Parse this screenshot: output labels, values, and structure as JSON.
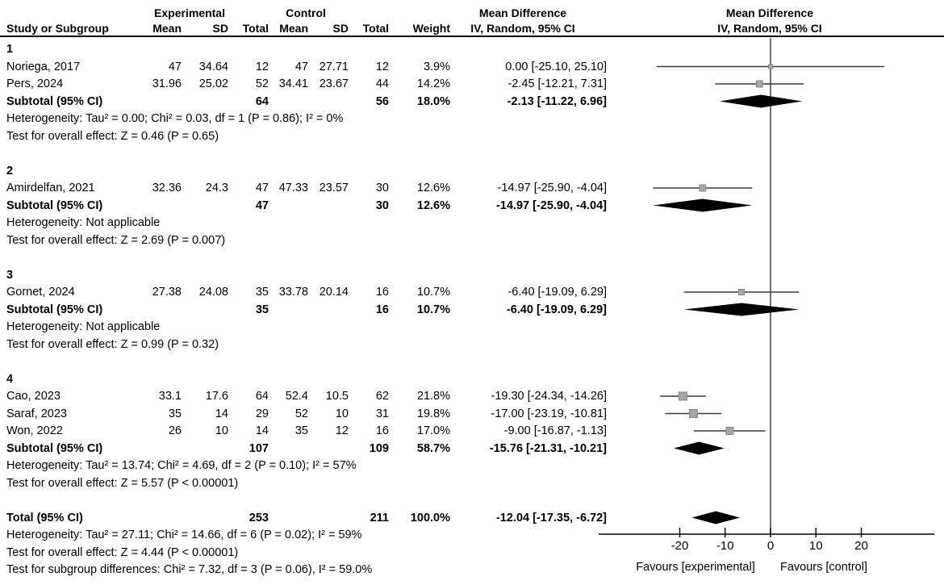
{
  "header": {
    "group_experimental": "Experimental",
    "group_control": "Control",
    "study_col": "Study or Subgroup",
    "cols": {
      "mean1": "Mean",
      "sd1": "SD",
      "total1": "Total",
      "mean2": "Mean",
      "sd2": "SD",
      "total2": "Total",
      "weight": "Weight"
    },
    "effect_label": "Mean Difference",
    "effect_sub": "IV, Random, 95% CI",
    "plot_label": "Mean Difference",
    "plot_sub": "IV, Random, 95% CI"
  },
  "axis": {
    "ticks": [
      -20,
      -10,
      0,
      10,
      20
    ],
    "tick_labels": [
      "-20",
      "-10",
      "0",
      "10",
      "20"
    ],
    "favours_left": "Favours [experimental]",
    "favours_right": "Favours [control]"
  },
  "colors": {
    "text": "#000000",
    "ci_line": "#3a3a3a",
    "zero_line": "#3a3a3a",
    "axis": "#000000",
    "square_fill": "#a6a6a6",
    "square_border": "#878787",
    "diamond": "#000000"
  },
  "rows": [
    {
      "type": "group",
      "label": "1"
    },
    {
      "type": "study",
      "study": "Noriega, 2017",
      "mean1": "47",
      "sd1": "34.64",
      "total1": "12",
      "mean2": "47",
      "sd2": "27.71",
      "total2": "12",
      "weight": "3.9%",
      "ci_text": "0.00 [-25.10, 25.10]",
      "est": 0.0,
      "lo": -25.1,
      "hi": 25.1,
      "weight_pct": 3.9
    },
    {
      "type": "study",
      "study": "Pers, 2024",
      "mean1": "31.96",
      "sd1": "25.02",
      "total1": "52",
      "mean2": "34.41",
      "sd2": "23.67",
      "total2": "44",
      "weight": "14.2%",
      "ci_text": "-2.45 [-12.21, 7.31]",
      "est": -2.45,
      "lo": -12.21,
      "hi": 7.31,
      "weight_pct": 14.2
    },
    {
      "type": "subtotal",
      "label": "Subtotal (95% CI)",
      "total1": "64",
      "total2": "56",
      "weight": "18.0%",
      "ci_text": "-2.13 [-11.22, 6.96]",
      "est": -2.13,
      "lo": -11.22,
      "hi": 6.96
    },
    {
      "type": "text",
      "text": "Heterogeneity: Tau² = 0.00; Chi² = 0.03, df = 1 (P = 0.86); I² = 0%"
    },
    {
      "type": "text",
      "text": "Test for overall effect: Z = 0.46 (P = 0.65)"
    },
    {
      "type": "spacer"
    },
    {
      "type": "group",
      "label": "2"
    },
    {
      "type": "study",
      "study": "Amirdelfan, 2021",
      "mean1": "32.36",
      "sd1": "24.3",
      "total1": "47",
      "mean2": "47.33",
      "sd2": "23.57",
      "total2": "30",
      "weight": "12.6%",
      "ci_text": "-14.97 [-25.90, -4.04]",
      "est": -14.97,
      "lo": -25.9,
      "hi": -4.04,
      "weight_pct": 12.6
    },
    {
      "type": "subtotal",
      "label": "Subtotal (95% CI)",
      "total1": "47",
      "total2": "30",
      "weight": "12.6%",
      "ci_text": "-14.97 [-25.90, -4.04]",
      "est": -14.97,
      "lo": -25.9,
      "hi": -4.04
    },
    {
      "type": "text",
      "text": "Heterogeneity: Not applicable"
    },
    {
      "type": "text",
      "text": "Test for overall effect: Z = 2.69 (P = 0.007)"
    },
    {
      "type": "spacer"
    },
    {
      "type": "group",
      "label": "3"
    },
    {
      "type": "study",
      "study": "Gornet, 2024",
      "mean1": "27.38",
      "sd1": "24.08",
      "total1": "35",
      "mean2": "33.78",
      "sd2": "20.14",
      "total2": "16",
      "weight": "10.7%",
      "ci_text": "-6.40 [-19.09, 6.29]",
      "est": -6.4,
      "lo": -19.09,
      "hi": 6.29,
      "weight_pct": 10.7
    },
    {
      "type": "subtotal",
      "label": "Subtotal (95% CI)",
      "total1": "35",
      "total2": "16",
      "weight": "10.7%",
      "ci_text": "-6.40 [-19.09, 6.29]",
      "est": -6.4,
      "lo": -19.09,
      "hi": 6.29
    },
    {
      "type": "text",
      "text": "Heterogeneity: Not applicable"
    },
    {
      "type": "text",
      "text": "Test for overall effect: Z = 0.99 (P = 0.32)"
    },
    {
      "type": "spacer"
    },
    {
      "type": "group",
      "label": "4"
    },
    {
      "type": "study",
      "study": "Cao, 2023",
      "mean1": "33.1",
      "sd1": "17.6",
      "total1": "64",
      "mean2": "52.4",
      "sd2": "10.5",
      "total2": "62",
      "weight": "21.8%",
      "ci_text": "-19.30 [-24.34, -14.26]",
      "est": -19.3,
      "lo": -24.34,
      "hi": -14.26,
      "weight_pct": 21.8
    },
    {
      "type": "study",
      "study": "Saraf, 2023",
      "mean1": "35",
      "sd1": "14",
      "total1": "29",
      "mean2": "52",
      "sd2": "10",
      "total2": "31",
      "weight": "19.8%",
      "ci_text": "-17.00 [-23.19, -10.81]",
      "est": -17.0,
      "lo": -23.19,
      "hi": -10.81,
      "weight_pct": 19.8
    },
    {
      "type": "study",
      "study": "Won, 2022",
      "mean1": "26",
      "sd1": "10",
      "total1": "14",
      "mean2": "35",
      "sd2": "12",
      "total2": "16",
      "weight": "17.0%",
      "ci_text": "-9.00 [-16.87, -1.13]",
      "est": -9.0,
      "lo": -16.87,
      "hi": -1.13,
      "weight_pct": 17.0
    },
    {
      "type": "subtotal",
      "label": "Subtotal (95% CI)",
      "total1": "107",
      "total2": "109",
      "weight": "58.7%",
      "ci_text": "-15.76 [-21.31, -10.21]",
      "est": -15.76,
      "lo": -21.31,
      "hi": -10.21
    },
    {
      "type": "text",
      "text": "Heterogeneity: Tau² = 13.74; Chi² = 4.69, df = 2 (P = 0.10); I² = 57%"
    },
    {
      "type": "text",
      "text": "Test for overall effect: Z = 5.57 (P < 0.00001)"
    },
    {
      "type": "spacer"
    },
    {
      "type": "total",
      "label": "Total (95% CI)",
      "total1": "253",
      "total2": "211",
      "weight": "100.0%",
      "ci_text": "-12.04 [-17.35, -6.72]",
      "est": -12.04,
      "lo": -17.35,
      "hi": -6.72
    },
    {
      "type": "text",
      "text": "Heterogeneity: Tau² = 27.11; Chi² = 14.66, df = 6 (P = 0.02); I² = 59%"
    },
    {
      "type": "text",
      "text": "Test for overall effect: Z = 4.44 (P < 0.00001)"
    },
    {
      "type": "text",
      "text": "Test for subgroup differences: Chi² = 7.32, df = 3 (P = 0.06), I² = 59.0%"
    }
  ],
  "chart_data": {
    "type": "scatter",
    "title": "Forest plot — Mean Difference, IV, Random, 95% CI",
    "xlabel": "Mean Difference",
    "xlim": [
      -37.8,
      36.1
    ],
    "x_ticks": [
      -20,
      -10,
      0,
      10,
      20
    ],
    "grid": false,
    "legend_position": "none",
    "favours_left": "Favours [experimental]",
    "favours_right": "Favours [control]",
    "groups": [
      {
        "label": "1",
        "studies": [
          {
            "name": "Noriega, 2017",
            "estimate": 0.0,
            "ci_low": -25.1,
            "ci_high": 25.1,
            "weight_pct": 3.9
          },
          {
            "name": "Pers, 2024",
            "estimate": -2.45,
            "ci_low": -12.21,
            "ci_high": 7.31,
            "weight_pct": 14.2
          }
        ],
        "subtotal": {
          "estimate": -2.13,
          "ci_low": -11.22,
          "ci_high": 6.96,
          "weight_pct": 18.0
        }
      },
      {
        "label": "2",
        "studies": [
          {
            "name": "Amirdelfan, 2021",
            "estimate": -14.97,
            "ci_low": -25.9,
            "ci_high": -4.04,
            "weight_pct": 12.6
          }
        ],
        "subtotal": {
          "estimate": -14.97,
          "ci_low": -25.9,
          "ci_high": -4.04,
          "weight_pct": 12.6
        }
      },
      {
        "label": "3",
        "studies": [
          {
            "name": "Gornet, 2024",
            "estimate": -6.4,
            "ci_low": -19.09,
            "ci_high": 6.29,
            "weight_pct": 10.7
          }
        ],
        "subtotal": {
          "estimate": -6.4,
          "ci_low": -19.09,
          "ci_high": 6.29,
          "weight_pct": 10.7
        }
      },
      {
        "label": "4",
        "studies": [
          {
            "name": "Cao, 2023",
            "estimate": -19.3,
            "ci_low": -24.34,
            "ci_high": -14.26,
            "weight_pct": 21.8
          },
          {
            "name": "Saraf, 2023",
            "estimate": -17.0,
            "ci_low": -23.19,
            "ci_high": -10.81,
            "weight_pct": 19.8
          },
          {
            "name": "Won, 2022",
            "estimate": -9.0,
            "ci_low": -16.87,
            "ci_high": -1.13,
            "weight_pct": 17.0
          }
        ],
        "subtotal": {
          "estimate": -15.76,
          "ci_low": -21.31,
          "ci_high": -10.21,
          "weight_pct": 58.7
        }
      }
    ],
    "total": {
      "estimate": -12.04,
      "ci_low": -17.35,
      "ci_high": -6.72,
      "weight_pct": 100.0
    }
  }
}
